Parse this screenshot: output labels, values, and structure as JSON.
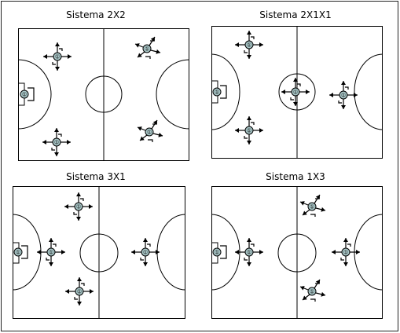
{
  "diagrams": [
    {
      "title": "Sistema 2X2",
      "player_label": "①"
    },
    {
      "title": "Sistema 2X1X1",
      "player_label": "①"
    },
    {
      "title": "Sistema 3X1",
      "player_label": "①"
    },
    {
      "title": "Sistema 1X3",
      "player_label": "①"
    }
  ],
  "colors": {
    "player_fill": "#a9c7c8",
    "line": "#000000"
  }
}
